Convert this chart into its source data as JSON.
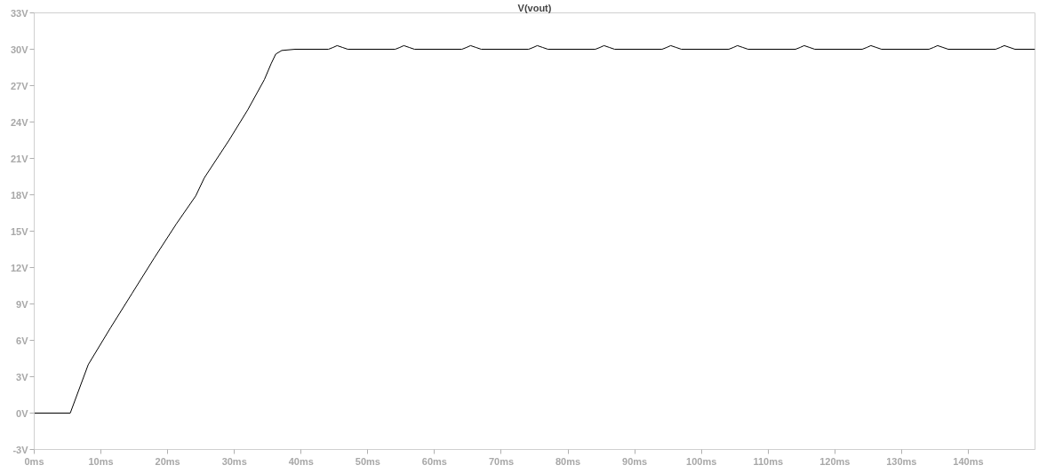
{
  "chart_data": {
    "type": "line",
    "title": "V(vout)",
    "x": [
      0,
      5.4,
      8.1,
      11.4,
      14.7,
      18,
      21.3,
      24.2,
      25.5,
      29.2,
      32,
      34.5,
      35.5,
      36.2,
      37.1,
      39.1,
      44.1,
      44.8,
      45.4,
      46.2,
      47,
      54.1,
      54.8,
      55.4,
      56.2,
      57,
      64.1,
      64.8,
      65.4,
      66.2,
      67,
      74.1,
      74.8,
      75.4,
      76.2,
      77,
      84.1,
      84.8,
      85.4,
      86.2,
      87,
      94.1,
      94.8,
      95.4,
      96.2,
      97,
      104.1,
      104.8,
      105.4,
      106.2,
      107,
      114.1,
      114.8,
      115.4,
      116.2,
      117,
      124.1,
      124.8,
      125.4,
      126.2,
      127,
      134.1,
      134.8,
      135.4,
      136.2,
      137,
      144.1,
      144.8,
      145.4,
      146.2,
      147,
      150
    ],
    "series": [
      {
        "color": "#000000",
        "values": [
          0,
          0,
          4.0,
          7.0,
          9.9,
          12.8,
          15.6,
          17.9,
          19.4,
          22.5,
          25.0,
          27.5,
          28.8,
          29.6,
          29.9,
          30,
          30,
          30.15,
          30.3,
          30.15,
          30,
          30,
          30.15,
          30.3,
          30.15,
          30,
          30,
          30.15,
          30.3,
          30.15,
          30,
          30,
          30.15,
          30.3,
          30.15,
          30,
          30,
          30.15,
          30.3,
          30.15,
          30,
          30,
          30.15,
          30.3,
          30.15,
          30,
          30,
          30.15,
          30.3,
          30.15,
          30,
          30,
          30.15,
          30.3,
          30.15,
          30,
          30,
          30.15,
          30.3,
          30.15,
          30,
          30,
          30.15,
          30.3,
          30.15,
          30,
          30,
          30.15,
          30.3,
          30.15,
          30,
          30
        ]
      }
    ],
    "xlim": [
      0,
      150
    ],
    "ylim": [
      -3,
      33
    ],
    "xticks": [
      {
        "value": 0,
        "label": "0ms"
      },
      {
        "value": 10,
        "label": "10ms"
      },
      {
        "value": 20,
        "label": "20ms"
      },
      {
        "value": 30,
        "label": "30ms"
      },
      {
        "value": 40,
        "label": "40ms"
      },
      {
        "value": 50,
        "label": "50ms"
      },
      {
        "value": 60,
        "label": "60ms"
      },
      {
        "value": 70,
        "label": "70ms"
      },
      {
        "value": 80,
        "label": "80ms"
      },
      {
        "value": 90,
        "label": "90ms"
      },
      {
        "value": 100,
        "label": "100ms"
      },
      {
        "value": 110,
        "label": "110ms"
      },
      {
        "value": 120,
        "label": "120ms"
      },
      {
        "value": 130,
        "label": "130ms"
      },
      {
        "value": 140,
        "label": "140ms"
      }
    ],
    "yticks": [
      {
        "value": -3,
        "label": "-3V"
      },
      {
        "value": 0,
        "label": "0V"
      },
      {
        "value": 3,
        "label": "3V"
      },
      {
        "value": 6,
        "label": "6V"
      },
      {
        "value": 9,
        "label": "9V"
      },
      {
        "value": 12,
        "label": "12V"
      },
      {
        "value": 15,
        "label": "15V"
      },
      {
        "value": 18,
        "label": "18V"
      },
      {
        "value": 21,
        "label": "21V"
      },
      {
        "value": 24,
        "label": "24V"
      },
      {
        "value": 27,
        "label": "27V"
      },
      {
        "value": 30,
        "label": "30V"
      },
      {
        "value": 33,
        "label": "33V"
      }
    ],
    "grid": false,
    "marker": "none",
    "line_style": "solid"
  }
}
